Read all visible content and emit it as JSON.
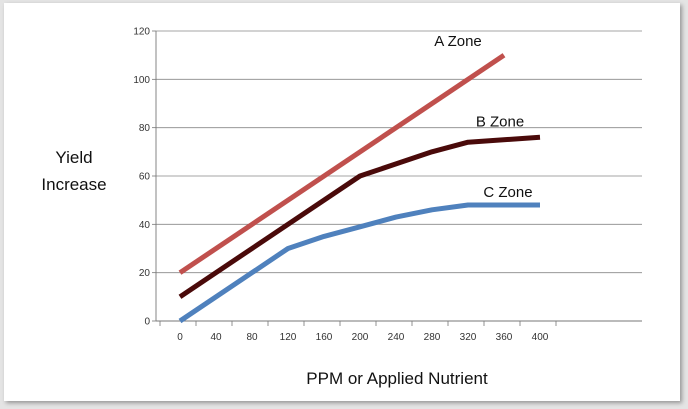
{
  "chart_data": {
    "type": "line",
    "title": "",
    "xlabel": "PPM or Applied Nutrient",
    "ylabel_lines": [
      "Yield",
      "Increase"
    ],
    "x": [
      0,
      40,
      80,
      120,
      160,
      200,
      240,
      280,
      320,
      360,
      400
    ],
    "x_tick_labels": [
      "0",
      "40",
      "80",
      "120",
      "160",
      "200",
      "240",
      "280",
      "320",
      "360",
      "400"
    ],
    "y_tick_labels": [
      "0",
      "20",
      "40",
      "60",
      "80",
      "100",
      "120"
    ],
    "xlim": [
      0,
      400
    ],
    "ylim": [
      0,
      120
    ],
    "grid": "horizontal",
    "legend": "inline labels at line ends",
    "series": [
      {
        "name": "A Zone",
        "color": "#c0504d",
        "x": [
          0,
          360
        ],
        "values": [
          20,
          110
        ]
      },
      {
        "name": "B Zone",
        "color": "#4a0a0a",
        "x": [
          0,
          120,
          200,
          240,
          280,
          320,
          400
        ],
        "values": [
          10,
          40,
          60,
          65,
          70,
          74,
          76
        ]
      },
      {
        "name": "C Zone",
        "color": "#4f81bd",
        "x": [
          0,
          120,
          160,
          200,
          240,
          280,
          320,
          400
        ],
        "values": [
          0,
          30,
          35,
          39,
          43,
          46,
          48,
          48
        ]
      }
    ]
  }
}
